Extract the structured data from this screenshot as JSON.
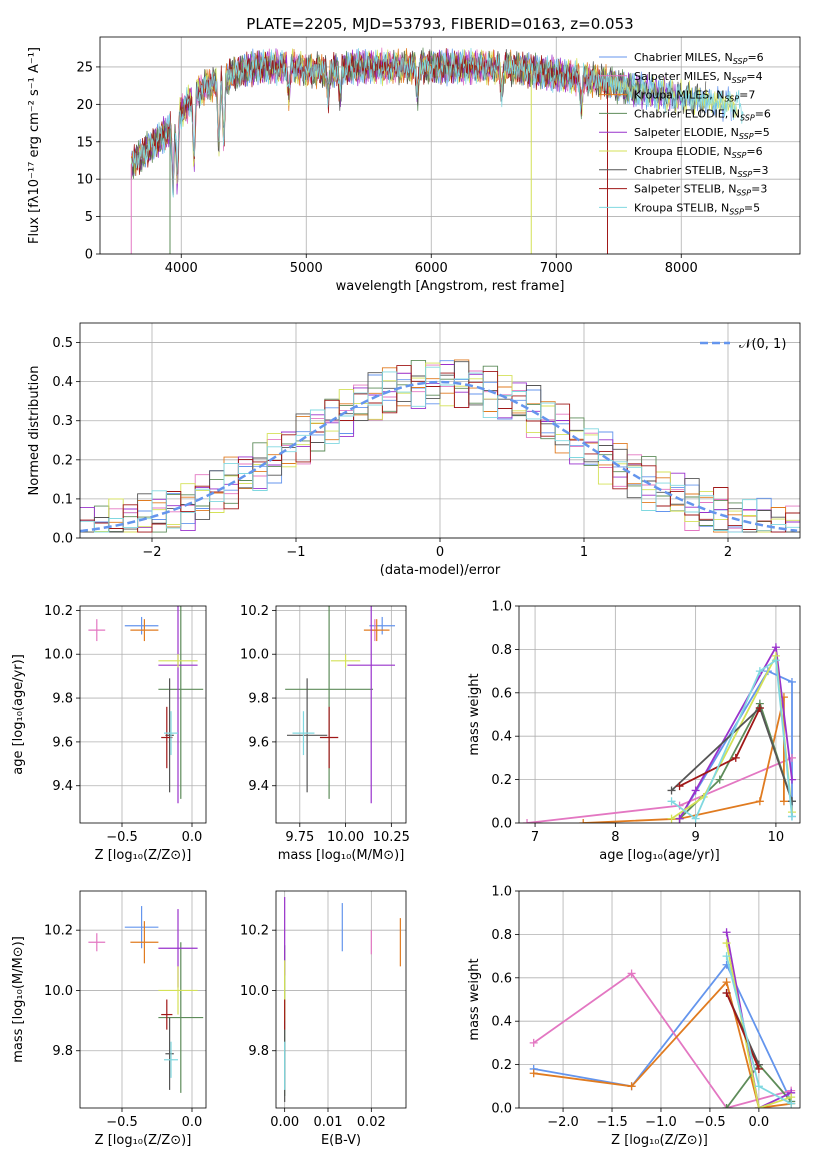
{
  "figure_title": "PLATE=2205, MJD=53793, FIBERID=0163, z=0.053",
  "models": [
    {
      "name": "Chabrier MILES",
      "n": "6",
      "color": "#6495ed"
    },
    {
      "name": "Salpeter MILES",
      "n": "4",
      "color": "#e377c2"
    },
    {
      "name": "Kroupa MILES",
      "n": "7",
      "color": "#e07b20"
    },
    {
      "name": "Chabrier ELODIE",
      "n": "6",
      "color": "#5e8c5a"
    },
    {
      "name": "Salpeter ELODIE",
      "n": "5",
      "color": "#9932cc"
    },
    {
      "name": "Kroupa ELODIE",
      "n": "6",
      "color": "#d4e157"
    },
    {
      "name": "Chabrier STELIB",
      "n": "3",
      "color": "#555555"
    },
    {
      "name": "Salpeter STELIB",
      "n": "3",
      "color": "#a01818"
    },
    {
      "name": "Kroupa STELIB",
      "n": "5",
      "color": "#80d8e0"
    }
  ],
  "chart_data": [
    {
      "id": "spectrum",
      "type": "line",
      "xlabel": "wavelength [Angstrom, rest frame]",
      "ylabel": "Flux [fλ10⁻¹⁷ erg cm⁻² s⁻¹ A⁻¹]",
      "xlim": [
        3350,
        8950
      ],
      "ylim": [
        0,
        29
      ],
      "xticks": [
        4000,
        5000,
        6000,
        7000,
        8000
      ],
      "yticks": [
        0,
        5,
        10,
        15,
        20,
        25
      ],
      "data_anchors": {
        "x": [
          3600,
          3700,
          3800,
          3900,
          4000,
          4100,
          4200,
          4300,
          4400,
          4500,
          4600,
          4700,
          4800,
          4900,
          5000,
          5200,
          5400,
          5600,
          5800,
          6000,
          6200,
          6400,
          6600,
          6800,
          7000,
          7200,
          7400,
          7500,
          7600,
          7800,
          8000,
          8200,
          8400,
          8600,
          8800
        ],
        "y": [
          12,
          13.5,
          15,
          16.5,
          19,
          21,
          22.5,
          23,
          24,
          24.5,
          25,
          25,
          25,
          25,
          24.5,
          24.5,
          25,
          25,
          25,
          25,
          25,
          25,
          25,
          24.5,
          24,
          23.5,
          23,
          22.5,
          22,
          21.5,
          21,
          20.5,
          20,
          19.5,
          19
        ]
      },
      "drops": [
        3600,
        3910,
        6800,
        7410
      ],
      "dip_x": [
        3934,
        3968,
        4102,
        4300,
        4340,
        4861,
        5175,
        5270,
        5890,
        6563,
        7200
      ]
    },
    {
      "id": "residuals",
      "type": "bar",
      "xlabel": "(data-model)/error",
      "ylabel": "Normed distribution",
      "xlim": [
        -2.5,
        2.5
      ],
      "ylim": [
        0,
        0.55
      ],
      "xticks": [
        -2,
        -1,
        0,
        1,
        2
      ],
      "yticks": [
        0,
        0.1,
        0.2,
        0.3,
        0.4,
        0.5
      ],
      "legend": "𝒩(0, 1)",
      "bin_width": 0.1
    },
    {
      "id": "age_vs_Z",
      "type": "scatter",
      "xlabel": "Z [log₁₀(Z/Z⊙)]",
      "ylabel": "age  [log₁₀(age/yr)]",
      "xlim": [
        -0.8,
        0.1
      ],
      "ylim": [
        9.23,
        10.22
      ],
      "xticks": [
        -0.5,
        0.0
      ],
      "yticks": [
        9.4,
        9.6,
        9.8,
        10.0,
        10.2
      ],
      "points": [
        {
          "m": 0,
          "x": -0.36,
          "xe": 0.12,
          "y": 10.13,
          "ye": 0.04
        },
        {
          "m": 1,
          "x": -0.68,
          "xe": 0.06,
          "y": 10.11,
          "ye": 0.05
        },
        {
          "m": 2,
          "x": -0.34,
          "xe": 0.1,
          "y": 10.11,
          "ye": 0.05
        },
        {
          "m": 3,
          "x": -0.08,
          "xe": 0.16,
          "y": 9.84,
          "ye": 0.5
        },
        {
          "m": 4,
          "x": -0.1,
          "xe": 0.14,
          "y": 9.95,
          "ye": 0.63
        },
        {
          "m": 5,
          "x": -0.1,
          "xe": 0.14,
          "y": 9.97,
          "ye": 0.03
        },
        {
          "m": 6,
          "x": -0.16,
          "xe": 0.03,
          "y": 9.63,
          "ye": 0.26
        },
        {
          "m": 7,
          "x": -0.18,
          "xe": 0.04,
          "y": 9.62,
          "ye": 0.14
        },
        {
          "m": 8,
          "x": -0.15,
          "xe": 0.05,
          "y": 9.64,
          "ye": 0.1
        }
      ]
    },
    {
      "id": "age_vs_mass",
      "type": "scatter",
      "xlabel": "mass [log₁₀(M/M⊙)]",
      "ylabel": "",
      "xlim": [
        9.62,
        10.33
      ],
      "ylim": [
        9.23,
        10.22
      ],
      "xticks": [
        9.75,
        10.0,
        10.25
      ],
      "yticks": [
        9.4,
        9.6,
        9.8,
        10.0,
        10.2
      ],
      "points": [
        {
          "m": 0,
          "x": 10.2,
          "xe": 0.07,
          "y": 10.13,
          "ye": 0.04
        },
        {
          "m": 1,
          "x": 10.16,
          "xe": 0.02,
          "y": 10.11,
          "ye": 0.05
        },
        {
          "m": 2,
          "x": 10.17,
          "xe": 0.07,
          "y": 10.11,
          "ye": 0.05
        },
        {
          "m": 3,
          "x": 9.91,
          "xe": 0.24,
          "y": 9.84,
          "ye": 0.5
        },
        {
          "m": 4,
          "x": 10.14,
          "xe": 0.13,
          "y": 9.95,
          "ye": 0.63
        },
        {
          "m": 5,
          "x": 10.0,
          "xe": 0.08,
          "y": 9.97,
          "ye": 0.03
        },
        {
          "m": 6,
          "x": 9.79,
          "xe": 0.11,
          "y": 9.63,
          "ye": 0.26
        },
        {
          "m": 7,
          "x": 9.91,
          "xe": 0.05,
          "y": 9.62,
          "ye": 0.14
        },
        {
          "m": 8,
          "x": 9.77,
          "xe": 0.06,
          "y": 9.64,
          "ye": 0.1
        }
      ]
    },
    {
      "id": "mass_weight_vs_age",
      "type": "line",
      "xlabel": "age  [log₁₀(age/yr)]",
      "ylabel": "mass weight",
      "xlim": [
        6.8,
        10.3
      ],
      "ylim": [
        0,
        1
      ],
      "xticks": [
        7,
        8,
        9,
        10
      ],
      "yticks": [
        0,
        0.2,
        0.4,
        0.6,
        0.8,
        1.0
      ],
      "series": [
        {
          "m": 0,
          "x": [
            8.8,
            9.9,
            10.2,
            10.2
          ],
          "y": [
            0.02,
            0.7,
            0.65,
            0.03
          ]
        },
        {
          "m": 1,
          "x": [
            6.9,
            8.8,
            10.2
          ],
          "y": [
            0.0,
            0.08,
            0.3
          ]
        },
        {
          "m": 2,
          "x": [
            7.6,
            8.8,
            9.8,
            10.1,
            10.1
          ],
          "y": [
            0.0,
            0.02,
            0.1,
            0.58,
            0.1
          ]
        },
        {
          "m": 3,
          "x": [
            8.8,
            9.3,
            9.8,
            10.2
          ],
          "y": [
            0.02,
            0.2,
            0.55,
            0.1
          ]
        },
        {
          "m": 4,
          "x": [
            8.8,
            9.0,
            10.0,
            10.2
          ],
          "y": [
            0.02,
            0.15,
            0.81,
            0.2
          ]
        },
        {
          "m": 5,
          "x": [
            8.7,
            9.1,
            10.0,
            10.2
          ],
          "y": [
            0.02,
            0.12,
            0.77,
            0.05
          ]
        },
        {
          "m": 6,
          "x": [
            8.7,
            9.8,
            10.2
          ],
          "y": [
            0.15,
            0.53,
            0.1
          ]
        },
        {
          "m": 7,
          "x": [
            8.8,
            9.5,
            9.8
          ],
          "y": [
            0.17,
            0.3,
            0.53
          ]
        },
        {
          "m": 8,
          "x": [
            8.7,
            9.0,
            9.8,
            10.0,
            10.2
          ],
          "y": [
            0.1,
            0.02,
            0.7,
            0.75,
            0.03
          ]
        }
      ]
    },
    {
      "id": "mass_vs_Z",
      "type": "scatter",
      "xlabel": "Z [log₁₀(Z/Z⊙)]",
      "ylabel": "mass [log₁₀(M/M⊙)]",
      "xlim": [
        -0.8,
        0.1
      ],
      "ylim": [
        9.61,
        10.33
      ],
      "xticks": [
        -0.5,
        0.0
      ],
      "yticks": [
        9.8,
        10.0,
        10.2
      ],
      "points": [
        {
          "m": 0,
          "x": -0.36,
          "xe": 0.12,
          "y": 10.21,
          "ye": 0.07
        },
        {
          "m": 1,
          "x": -0.68,
          "xe": 0.06,
          "y": 10.16,
          "ye": 0.03
        },
        {
          "m": 2,
          "x": -0.34,
          "xe": 0.1,
          "y": 10.16,
          "ye": 0.07
        },
        {
          "m": 3,
          "x": -0.08,
          "xe": 0.16,
          "y": 9.91,
          "ye": 0.25
        },
        {
          "m": 4,
          "x": -0.1,
          "xe": 0.14,
          "y": 10.14,
          "ye": 0.13
        },
        {
          "m": 5,
          "x": -0.1,
          "xe": 0.14,
          "y": 10.0,
          "ye": 0.08
        },
        {
          "m": 6,
          "x": -0.16,
          "xe": 0.03,
          "y": 9.79,
          "ye": 0.12
        },
        {
          "m": 7,
          "x": -0.18,
          "xe": 0.04,
          "y": 9.92,
          "ye": 0.05
        },
        {
          "m": 8,
          "x": -0.15,
          "xe": 0.05,
          "y": 9.77,
          "ye": 0.06
        }
      ]
    },
    {
      "id": "mass_vs_ebv",
      "type": "scatter",
      "xlabel": "E(B-V)",
      "ylabel": "",
      "xlim": [
        -0.002,
        0.028
      ],
      "ylim": [
        9.61,
        10.33
      ],
      "xticks": [
        0.0,
        0.01,
        0.02
      ],
      "yticks": [
        9.8,
        10.0,
        10.2
      ],
      "points": [
        {
          "m": 0,
          "x": 0.0133,
          "xe": 0,
          "y": 10.21,
          "ye": 0.08
        },
        {
          "m": 1,
          "x": 0.02,
          "xe": 0,
          "y": 10.16,
          "ye": 0.04
        },
        {
          "m": 2,
          "x": 0.0267,
          "xe": 0,
          "y": 10.16,
          "ye": 0.08
        },
        {
          "m": 3,
          "x": 0.0,
          "xe": 0,
          "y": 9.9,
          "ye": 0.25
        },
        {
          "m": 4,
          "x": 0.0,
          "xe": 0,
          "y": 10.18,
          "ye": 0.13
        },
        {
          "m": 5,
          "x": 0.0,
          "xe": 0,
          "y": 10.0,
          "ye": 0.1
        },
        {
          "m": 6,
          "x": 0.0,
          "xe": 0,
          "y": 9.75,
          "ye": 0.12
        },
        {
          "m": 7,
          "x": 0.0,
          "xe": 0,
          "y": 9.92,
          "ye": 0.05
        },
        {
          "m": 8,
          "x": 0.0,
          "xe": 0,
          "y": 9.75,
          "ye": 0.08
        }
      ]
    },
    {
      "id": "mass_weight_vs_Z",
      "type": "line",
      "xlabel": "Z [log₁₀(Z/Z⊙)]",
      "ylabel": "mass weight",
      "xlim": [
        -2.45,
        0.42
      ],
      "ylim": [
        0,
        1
      ],
      "xticks": [
        -2.0,
        -1.5,
        -1.0,
        -0.5,
        0.0
      ],
      "yticks": [
        0,
        0.2,
        0.4,
        0.6,
        0.8,
        1.0
      ],
      "series": [
        {
          "m": 0,
          "x": [
            -2.3,
            -1.3,
            -0.33,
            0.33
          ],
          "y": [
            0.18,
            0.1,
            0.66,
            0.03
          ]
        },
        {
          "m": 1,
          "x": [
            -2.3,
            -1.3,
            -0.33,
            0.33
          ],
          "y": [
            0.3,
            0.62,
            0.0,
            0.08
          ]
        },
        {
          "m": 2,
          "x": [
            -2.3,
            -1.3,
            -0.33,
            0.0,
            0.33
          ],
          "y": [
            0.16,
            0.1,
            0.58,
            0.0,
            0.02
          ]
        },
        {
          "m": 3,
          "x": [
            -0.33,
            0.0,
            0.33
          ],
          "y": [
            0.0,
            0.2,
            0.03
          ]
        },
        {
          "m": 4,
          "x": [
            -0.33,
            0.0,
            0.33
          ],
          "y": [
            0.81,
            0.0,
            0.07
          ]
        },
        {
          "m": 5,
          "x": [
            -0.33,
            0.0,
            0.33
          ],
          "y": [
            0.76,
            0.0,
            0.05
          ]
        },
        {
          "m": 6,
          "x": [
            -0.33,
            0.0
          ],
          "y": [
            0.53,
            0.2
          ]
        },
        {
          "m": 7,
          "x": [
            -0.33,
            0.0
          ],
          "y": [
            0.53,
            0.18
          ]
        },
        {
          "m": 8,
          "x": [
            -0.33,
            0.0,
            0.33
          ],
          "y": [
            0.7,
            0.1,
            0.02
          ]
        }
      ]
    }
  ]
}
